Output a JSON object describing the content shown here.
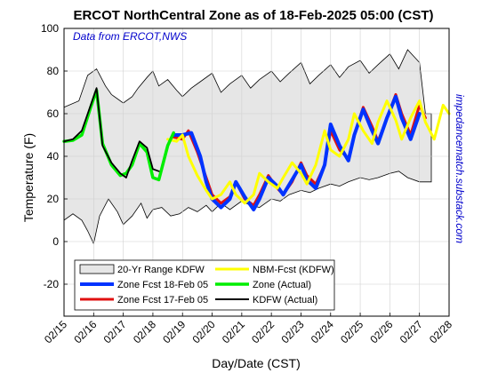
{
  "chart_data": {
    "type": "line",
    "title": "ERCOT NorthCentral Zone as of 18-Feb-2025 05:00 (CST)",
    "xlabel": "Day/Date (CST)",
    "ylabel": "Temperature (F)",
    "source_note": "Data from ERCOT,NWS",
    "side_note": "impedancematch.substack.com",
    "xlim": [
      "02/15",
      "02/28"
    ],
    "ylim": [
      -35,
      100
    ],
    "x_ticks": [
      "02/15",
      "02/16",
      "02/17",
      "02/18",
      "02/19",
      "02/20",
      "02/21",
      "02/22",
      "02/23",
      "02/24",
      "02/25",
      "02/26",
      "02/27",
      "02/28"
    ],
    "y_ticks": [
      -20,
      0,
      20,
      40,
      60,
      80,
      100
    ],
    "grid": true,
    "legend_position": "bottom-inside",
    "colors": {
      "range_fill": "#e6e6e6",
      "zone_fcst_18": "#0033ff",
      "zone_fcst_17": "#e01010",
      "nbm_fcst": "#ffff00",
      "zone_actual": "#00ee00",
      "kdfw_actual": "#000000",
      "source_note": "#0000cc",
      "side_note": "#0000cc"
    },
    "legend": [
      {
        "key": "range",
        "label": "20-Yr Range KDFW"
      },
      {
        "key": "zone18",
        "label": "Zone Fcst 18-Feb 05"
      },
      {
        "key": "zone17",
        "label": "Zone Fcst 17-Feb 05"
      },
      {
        "key": "nbm",
        "label": "NBM-Fcst (KDFW)"
      },
      {
        "key": "zoneact",
        "label": "Zone (Actual)"
      },
      {
        "key": "kdfw",
        "label": "KDFW (Actual)"
      }
    ],
    "series": {
      "range_upper": {
        "x": [
          0,
          0.5,
          0.8,
          1.1,
          1.4,
          1.6,
          2.0,
          2.3,
          2.5,
          2.8,
          3.0,
          3.2,
          3.5,
          3.8,
          4.0,
          4.3,
          4.6,
          5.0,
          5.3,
          5.6,
          6.0,
          6.3,
          6.6,
          7.0,
          7.3,
          7.6,
          8.0,
          8.3,
          8.6,
          9.0,
          9.3,
          9.6,
          10.0,
          10.3,
          10.6,
          11.0,
          11.3,
          11.6,
          12.0,
          12.2,
          12.4
        ],
        "y": [
          63,
          66,
          78,
          81,
          73,
          69,
          65,
          68,
          72,
          77,
          80,
          73,
          76,
          71,
          68,
          72,
          75,
          79,
          70,
          74,
          78,
          72,
          76,
          80,
          75,
          79,
          84,
          74,
          78,
          83,
          77,
          82,
          85,
          79,
          83,
          88,
          81,
          90,
          84,
          60,
          60
        ]
      },
      "range_lower": {
        "x": [
          0,
          0.3,
          0.6,
          0.8,
          1.0,
          1.2,
          1.5,
          1.8,
          2.0,
          2.3,
          2.6,
          2.8,
          3.0,
          3.3,
          3.6,
          3.9,
          4.2,
          4.5,
          4.8,
          5.0,
          5.3,
          5.6,
          6.0,
          6.3,
          6.6,
          7.0,
          7.3,
          7.6,
          8.0,
          8.3,
          8.6,
          9.0,
          9.3,
          9.6,
          10.0,
          10.3,
          10.6,
          11.0,
          11.3,
          11.6,
          12.0,
          12.4
        ],
        "y": [
          10,
          13,
          10,
          5,
          -1,
          12,
          20,
          14,
          8,
          12,
          18,
          11,
          15,
          16,
          12,
          13,
          16,
          14,
          17,
          14,
          18,
          15,
          19,
          17,
          16,
          20,
          19,
          22,
          24,
          23,
          25,
          27,
          26,
          28,
          30,
          29,
          30,
          32,
          33,
          30,
          28,
          28
        ]
      },
      "kdfw_actual": {
        "x": [
          0,
          0.3,
          0.6,
          0.9,
          1.1,
          1.3,
          1.6,
          1.9,
          2.1,
          2.3,
          2.55,
          2.8,
          3.0,
          3.2
        ],
        "y": [
          47,
          48,
          52,
          64,
          72,
          45,
          37,
          32,
          30,
          38,
          47,
          44,
          34,
          33
        ]
      },
      "zone_actual": {
        "x": [
          0,
          0.3,
          0.6,
          0.9,
          1.1,
          1.3,
          1.6,
          1.9,
          2.1,
          2.3,
          2.55,
          2.8,
          3.0,
          3.2,
          3.5,
          3.7
        ],
        "y": [
          47,
          47.5,
          50,
          63,
          71,
          46,
          36,
          31,
          32,
          36,
          46,
          42,
          30,
          29,
          45,
          51
        ]
      },
      "zone_fcst_17": {
        "x": [
          3.7,
          4.0,
          4.2,
          4.5,
          4.8,
          5.0,
          5.3,
          5.6,
          5.8,
          6.1,
          6.4,
          6.6,
          6.9,
          7.2,
          7.4,
          7.7,
          8.0,
          8.2,
          8.5,
          8.8,
          9.0,
          9.3,
          9.6,
          9.8,
          10.1,
          10.4,
          10.6,
          10.9,
          11.2,
          11.4,
          11.7,
          12.0,
          12.2
        ],
        "y": [
          49,
          48,
          52,
          42,
          30,
          22,
          18,
          21,
          28,
          20,
          17,
          22,
          31,
          25,
          22,
          28,
          37,
          31,
          27,
          36,
          52,
          43,
          39,
          50,
          63,
          54,
          47,
          58,
          69,
          60,
          50,
          64,
          58
        ]
      },
      "zone_fcst_18": {
        "x": [
          3.7,
          4.0,
          4.3,
          4.6,
          4.8,
          5.0,
          5.3,
          5.6,
          5.8,
          6.1,
          6.4,
          6.6,
          6.9,
          7.2,
          7.4,
          7.7,
          8.0,
          8.2,
          8.5,
          8.8,
          9.0,
          9.3,
          9.6,
          9.8,
          10.1,
          10.4,
          10.6,
          10.9,
          11.2,
          11.4,
          11.7,
          12.0
        ],
        "y": [
          50,
          50,
          51,
          40,
          28,
          20,
          16,
          20,
          28,
          21,
          15,
          20,
          30,
          26,
          22,
          29,
          36,
          29,
          25,
          36,
          55,
          45,
          38,
          50,
          62,
          52,
          46,
          58,
          68,
          58,
          48,
          60
        ]
      },
      "nbm_fcst": {
        "x": [
          3.5,
          3.8,
          4.0,
          4.2,
          4.5,
          4.8,
          5.0,
          5.3,
          5.6,
          5.8,
          6.1,
          6.4,
          6.6,
          6.9,
          7.2,
          7.4,
          7.7,
          8.0,
          8.2,
          8.5,
          8.8,
          9.0,
          9.3,
          9.6,
          9.8,
          10.1,
          10.4,
          10.6,
          10.9,
          11.2,
          11.4,
          11.7,
          12.0,
          12.2,
          12.5,
          12.8,
          13.0
        ],
        "y": [
          48,
          47,
          50,
          40,
          31,
          24,
          20,
          22,
          28,
          22,
          18,
          22,
          32,
          28,
          25,
          30,
          37,
          32,
          27,
          36,
          52,
          43,
          40,
          48,
          60,
          52,
          46,
          56,
          66,
          57,
          48,
          58,
          66,
          56,
          48,
          64,
          60
        ]
      }
    }
  }
}
